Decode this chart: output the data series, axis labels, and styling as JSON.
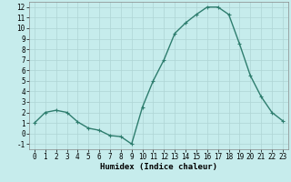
{
  "x": [
    0,
    1,
    2,
    3,
    4,
    5,
    6,
    7,
    8,
    9,
    10,
    11,
    12,
    13,
    14,
    15,
    16,
    17,
    18,
    19,
    20,
    21,
    22,
    23
  ],
  "y": [
    1.0,
    2.0,
    2.2,
    2.0,
    1.1,
    0.5,
    0.3,
    -0.2,
    -0.3,
    -1.0,
    2.5,
    5.0,
    7.0,
    9.5,
    10.5,
    11.3,
    12.0,
    12.0,
    11.3,
    8.5,
    5.5,
    3.5,
    2.0,
    1.2
  ],
  "line_color": "#2e7d6e",
  "marker": "+",
  "marker_size": 3,
  "line_width": 1.0,
  "bg_color": "#c6ecec",
  "grid_color": "#aed4d4",
  "xlabel": "Humidex (Indice chaleur)",
  "xlabel_fontsize": 6.5,
  "tick_fontsize": 5.5,
  "ylim": [
    -1.5,
    12.5
  ],
  "xlim": [
    -0.5,
    23.5
  ],
  "yticks": [
    -1,
    0,
    1,
    2,
    3,
    4,
    5,
    6,
    7,
    8,
    9,
    10,
    11,
    12
  ],
  "xticks": [
    0,
    1,
    2,
    3,
    4,
    5,
    6,
    7,
    8,
    9,
    10,
    11,
    12,
    13,
    14,
    15,
    16,
    17,
    18,
    19,
    20,
    21,
    22,
    23
  ]
}
